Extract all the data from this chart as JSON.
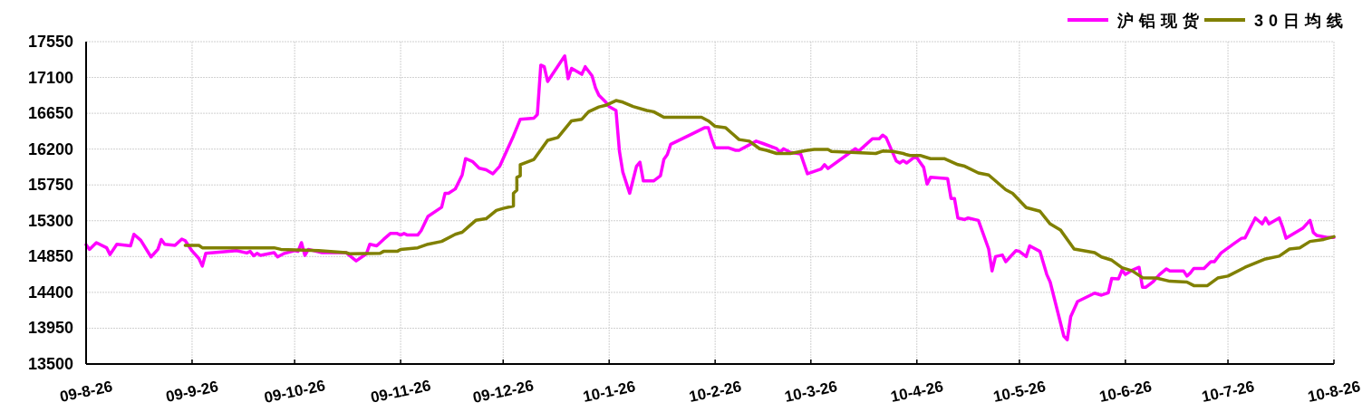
{
  "chart_data": {
    "type": "line",
    "xlim": [
      "2009-08-26",
      "2010-08-26"
    ],
    "xticks": [
      {
        "value": "2009-08-26",
        "label": "09-8-26"
      },
      {
        "value": "2009-09-26",
        "label": "09-9-26"
      },
      {
        "value": "2009-10-26",
        "label": "09-10-26"
      },
      {
        "value": "2009-11-26",
        "label": "09-11-26"
      },
      {
        "value": "2009-12-26",
        "label": "09-12-26"
      },
      {
        "value": "2010-01-26",
        "label": "10-1-26"
      },
      {
        "value": "2010-02-26",
        "label": "10-2-26"
      },
      {
        "value": "2010-03-26",
        "label": "10-3-26"
      },
      {
        "value": "2010-04-26",
        "label": "10-4-26"
      },
      {
        "value": "2010-05-26",
        "label": "10-5-26"
      },
      {
        "value": "2010-06-26",
        "label": "10-6-26"
      },
      {
        "value": "2010-07-26",
        "label": "10-7-26"
      },
      {
        "value": "2010-08-26",
        "label": "10-8-26"
      }
    ],
    "ylim": [
      13500,
      17550
    ],
    "yticks": [
      13500,
      13950,
      14400,
      14850,
      15300,
      15750,
      16200,
      16650,
      17100,
      17550
    ],
    "grid": true,
    "legend": "top right",
    "series": [
      {
        "name": "沪铝现货",
        "color": "#ff00ff",
        "x": [
          "2009-08-26",
          "2009-08-27",
          "2009-08-29",
          "2009-09-01",
          "2009-09-02",
          "2009-09-04",
          "2009-09-08",
          "2009-09-09",
          "2009-09-11",
          "2009-09-14",
          "2009-09-16",
          "2009-09-17",
          "2009-09-18",
          "2009-09-21",
          "2009-09-23",
          "2009-09-24",
          "2009-09-26",
          "2009-09-28",
          "2009-09-29",
          "2009-09-30",
          "2009-10-09",
          "2009-10-12",
          "2009-10-13",
          "2009-10-14",
          "2009-10-15",
          "2009-10-16",
          "2009-10-20",
          "2009-10-21",
          "2009-10-23",
          "2009-10-26",
          "2009-10-27",
          "2009-10-28",
          "2009-10-29",
          "2009-10-30",
          "2009-11-03",
          "2009-11-10",
          "2009-11-13",
          "2009-11-16",
          "2009-11-17",
          "2009-11-19",
          "2009-11-21",
          "2009-11-23",
          "2009-11-25",
          "2009-11-26",
          "2009-11-27",
          "2009-11-28",
          "2009-12-01",
          "2009-12-02",
          "2009-12-04",
          "2009-12-08",
          "2009-12-09",
          "2009-12-10",
          "2009-12-12",
          "2009-12-14",
          "2009-12-15",
          "2009-12-17",
          "2009-12-19",
          "2009-12-21",
          "2009-12-23",
          "2009-12-25",
          "2009-12-29",
          "2009-12-31",
          "2010-01-04",
          "2010-01-05",
          "2010-01-06",
          "2010-01-07",
          "2010-01-08",
          "2010-01-13",
          "2010-01-14",
          "2010-01-15",
          "2010-01-18",
          "2010-01-19",
          "2010-01-21",
          "2010-01-22",
          "2010-01-23",
          "2010-01-25",
          "2010-01-26",
          "2010-01-28",
          "2010-01-29",
          "2010-01-30",
          "2010-02-01",
          "2010-02-03",
          "2010-02-04",
          "2010-02-05",
          "2010-02-08",
          "2010-02-10",
          "2010-02-11",
          "2010-02-12",
          "2010-02-13",
          "2010-02-23",
          "2010-02-24",
          "2010-02-25",
          "2010-02-26",
          "2010-03-02",
          "2010-03-04",
          "2010-03-05",
          "2010-03-10",
          "2010-03-12",
          "2010-03-16",
          "2010-03-17",
          "2010-03-18",
          "2010-03-20",
          "2010-03-23",
          "2010-03-25",
          "2010-03-29",
          "2010-03-30",
          "2010-03-31",
          "2010-04-08",
          "2010-04-09",
          "2010-04-13",
          "2010-04-15",
          "2010-04-16",
          "2010-04-17",
          "2010-04-20",
          "2010-04-21",
          "2010-04-22",
          "2010-04-23",
          "2010-04-25",
          "2010-04-26",
          "2010-04-28",
          "2010-04-29",
          "2010-04-30",
          "2010-05-05",
          "2010-05-06",
          "2010-05-07",
          "2010-05-08",
          "2010-05-10",
          "2010-05-11",
          "2010-05-14",
          "2010-05-17",
          "2010-05-18",
          "2010-05-19",
          "2010-05-21",
          "2010-05-22",
          "2010-05-25",
          "2010-05-26",
          "2010-05-28",
          "2010-05-29",
          "2010-06-01",
          "2010-06-03",
          "2010-06-04",
          "2010-06-08",
          "2010-06-09",
          "2010-06-10",
          "2010-06-12",
          "2010-06-17",
          "2010-06-19",
          "2010-06-21",
          "2010-06-22",
          "2010-06-24",
          "2010-06-25",
          "2010-06-26",
          "2010-06-28",
          "2010-06-30",
          "2010-07-01",
          "2010-07-02",
          "2010-07-04",
          "2010-07-06",
          "2010-07-08",
          "2010-07-09",
          "2010-07-13",
          "2010-07-14",
          "2010-07-15",
          "2010-07-16",
          "2010-07-19",
          "2010-07-21",
          "2010-07-22",
          "2010-07-24",
          "2010-07-28",
          "2010-07-30",
          "2010-07-31",
          "2010-08-03",
          "2010-08-05",
          "2010-08-06",
          "2010-08-07",
          "2010-08-10",
          "2010-08-11",
          "2010-08-12",
          "2010-08-17",
          "2010-08-19",
          "2010-08-20",
          "2010-08-21",
          "2010-08-24",
          "2010-08-26"
        ],
        "values": [
          15000,
          14940,
          15025,
          14960,
          14875,
          15005,
          14985,
          15130,
          15055,
          14845,
          14940,
          15065,
          15005,
          14990,
          15070,
          15050,
          14920,
          14825,
          14730,
          14890,
          14925,
          14895,
          14915,
          14860,
          14890,
          14865,
          14900,
          14845,
          14890,
          14925,
          14915,
          15025,
          14865,
          14940,
          14900,
          14900,
          14795,
          14885,
          15005,
          14985,
          15065,
          15140,
          15140,
          15120,
          15140,
          15120,
          15120,
          15175,
          15355,
          15470,
          15645,
          15645,
          15700,
          15875,
          16080,
          16045,
          15960,
          15940,
          15890,
          15985,
          16365,
          16575,
          16590,
          16635,
          17255,
          17235,
          17050,
          17370,
          17085,
          17215,
          17140,
          17235,
          17120,
          16970,
          16875,
          16790,
          16735,
          16685,
          16175,
          15910,
          15645,
          15985,
          16035,
          15800,
          15800,
          15865,
          16070,
          16130,
          16260,
          16470,
          16470,
          16330,
          16215,
          16215,
          16185,
          16185,
          16300,
          16270,
          16205,
          16160,
          16205,
          16160,
          16140,
          15890,
          15950,
          16005,
          15955,
          16205,
          16175,
          16330,
          16330,
          16375,
          16345,
          16050,
          16025,
          16055,
          16025,
          16090,
          16090,
          15970,
          15760,
          15845,
          15830,
          15580,
          15580,
          15335,
          15315,
          15335,
          15305,
          14945,
          14670,
          14850,
          14870,
          14785,
          14925,
          14915,
          14850,
          14985,
          14915,
          14625,
          14530,
          13850,
          13805,
          14095,
          14285,
          14390,
          14365,
          14395,
          14575,
          14570,
          14680,
          14625,
          14680,
          14715,
          14465,
          14465,
          14530,
          14625,
          14695,
          14670,
          14670,
          14605,
          14645,
          14700,
          14700,
          14785,
          14785,
          14895,
          15020,
          15080,
          15085,
          15335,
          15260,
          15335,
          15260,
          15335,
          15220,
          15080,
          15210,
          15305,
          15150,
          15115,
          15090,
          15090
        ]
      },
      {
        "name": "30日均线",
        "color": "#808000",
        "x": [
          "2009-09-24",
          "2009-09-28",
          "2009-09-29",
          "2009-10-20",
          "2009-10-22",
          "2009-11-02",
          "2009-11-10",
          "2009-11-11",
          "2009-11-20",
          "2009-11-21",
          "2009-11-25",
          "2009-11-26",
          "2009-12-01",
          "2009-12-04",
          "2009-12-08",
          "2009-12-12",
          "2009-12-14",
          "2009-12-16",
          "2009-12-18",
          "2009-12-21",
          "2009-12-24",
          "2009-12-26",
          "2009-12-29",
          "2009-12-29",
          "2009-12-30",
          "2009-12-30",
          "2009-12-31",
          "2009-12-31",
          "2010-01-04",
          "2010-01-08",
          "2010-01-11",
          "2010-01-15",
          "2010-01-18",
          "2010-01-20",
          "2010-01-23",
          "2010-01-25",
          "2010-01-28",
          "2010-01-30",
          "2010-02-02",
          "2010-02-06",
          "2010-02-08",
          "2010-02-11",
          "2010-02-22",
          "2010-02-24",
          "2010-02-26",
          "2010-03-01",
          "2010-03-03",
          "2010-03-05",
          "2010-03-08",
          "2010-03-11",
          "2010-03-13",
          "2010-03-16",
          "2010-03-20",
          "2010-03-25",
          "2010-03-27",
          "2010-03-31",
          "2010-04-01",
          "2010-04-14",
          "2010-04-16",
          "2010-04-19",
          "2010-04-22",
          "2010-04-23",
          "2010-04-24",
          "2010-04-27",
          "2010-04-30",
          "2010-05-04",
          "2010-05-08",
          "2010-05-10",
          "2010-05-14",
          "2010-05-17",
          "2010-05-22",
          "2010-05-24",
          "2010-05-28",
          "2010-06-01",
          "2010-06-04",
          "2010-06-07",
          "2010-06-11",
          "2010-06-17",
          "2010-06-19",
          "2010-06-22",
          "2010-06-25",
          "2010-06-28",
          "2010-07-01",
          "2010-07-05",
          "2010-07-09",
          "2010-07-14",
          "2010-07-16",
          "2010-07-20",
          "2010-07-23",
          "2010-07-26",
          "2010-07-31",
          "2010-08-06",
          "2010-08-10",
          "2010-08-13",
          "2010-08-16",
          "2010-08-19",
          "2010-08-23",
          "2010-08-26"
        ],
        "values": [
          14990,
          14990,
          14960,
          14960,
          14940,
          14925,
          14900,
          14885,
          14890,
          14915,
          14915,
          14940,
          14960,
          15005,
          15040,
          15130,
          15155,
          15230,
          15305,
          15325,
          15430,
          15455,
          15485,
          15645,
          15685,
          15845,
          15865,
          16005,
          16070,
          16310,
          16345,
          16555,
          16575,
          16670,
          16730,
          16750,
          16810,
          16790,
          16735,
          16685,
          16670,
          16600,
          16600,
          16555,
          16485,
          16470,
          16395,
          16320,
          16300,
          16205,
          16185,
          16145,
          16145,
          16185,
          16195,
          16195,
          16170,
          16145,
          16175,
          16170,
          16145,
          16130,
          16120,
          16120,
          16080,
          16080,
          16005,
          15985,
          15900,
          15875,
          15690,
          15645,
          15465,
          15420,
          15260,
          15185,
          14945,
          14900,
          14845,
          14805,
          14710,
          14670,
          14585,
          14580,
          14540,
          14530,
          14485,
          14485,
          14580,
          14605,
          14715,
          14820,
          14855,
          14945,
          14960,
          15040,
          15065,
          15100
        ]
      }
    ]
  }
}
